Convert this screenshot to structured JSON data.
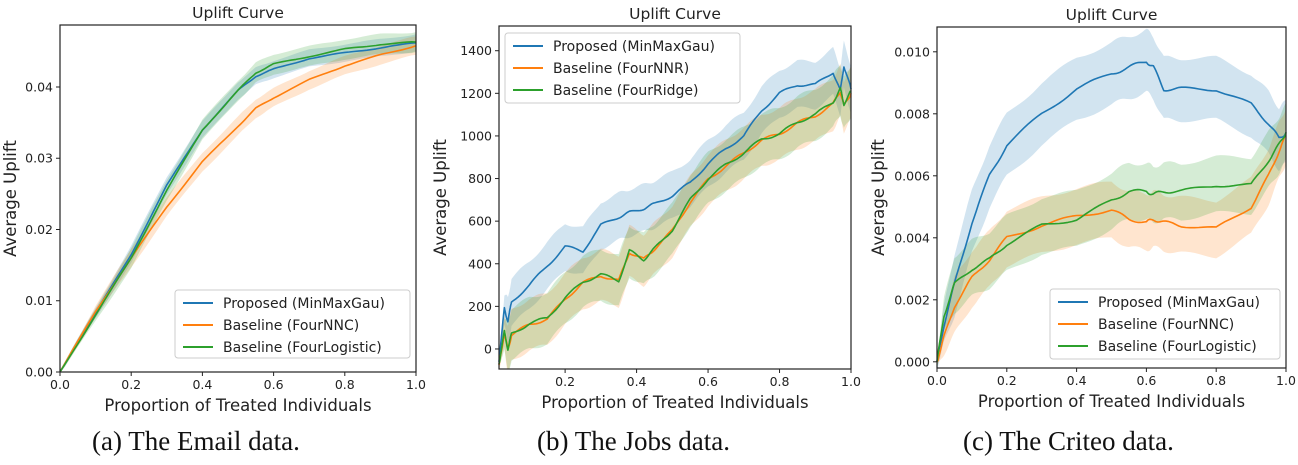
{
  "captions": {
    "a": "(a) The Email data.",
    "b": "(b) The Jobs data.",
    "c": "(c) The Criteo data."
  },
  "colors": {
    "proposed": "#1f77b4",
    "baseline1": "#ff7f0e",
    "baseline2": "#2ca02c"
  },
  "chart_data": [
    {
      "id": "email",
      "type": "line",
      "title": "Uplift Curve",
      "xlabel": "Proportion of Treated Individuals",
      "ylabel": "Average Uplift",
      "xlim": [
        0.0,
        1.0
      ],
      "ylim": [
        0.0,
        0.0487
      ],
      "xticks": [
        0.0,
        0.2,
        0.4,
        0.6,
        0.8,
        1.0
      ],
      "xtick_labels": [
        "0.0",
        "0.2",
        "0.4",
        "0.6",
        "0.8",
        "1.0"
      ],
      "yticks": [
        0.0,
        0.01,
        0.02,
        0.03,
        0.04
      ],
      "ytick_labels": [
        "0.00",
        "0.01",
        "0.02",
        "0.03",
        "0.04"
      ],
      "grid": false,
      "legend_position": "lower right",
      "legend": [
        "Proposed (MinMaxGau)",
        "Baseline (FourNNC)",
        "Baseline (FourLogistic)"
      ],
      "x": [
        0.0,
        0.1,
        0.2,
        0.3,
        0.4,
        0.5,
        0.55,
        0.6,
        0.7,
        0.8,
        0.9,
        1.0
      ],
      "series": [
        {
          "name": "Proposed (MinMaxGau)",
          "color": "#1f77b4",
          "band": 0.0012,
          "values": [
            0.0,
            0.0083,
            0.0165,
            0.0262,
            0.034,
            0.0395,
            0.0415,
            0.0425,
            0.044,
            0.0448,
            0.0455,
            0.0462
          ]
        },
        {
          "name": "Baseline (FourNNC)",
          "color": "#ff7f0e",
          "band": 0.0013,
          "values": [
            0.0,
            0.0085,
            0.016,
            0.0232,
            0.0295,
            0.0345,
            0.037,
            0.0385,
            0.041,
            0.043,
            0.0445,
            0.0458
          ]
        },
        {
          "name": "Baseline (FourLogistic)",
          "color": "#2ca02c",
          "band": 0.0014,
          "values": [
            0.0,
            0.008,
            0.016,
            0.0255,
            0.034,
            0.0395,
            0.042,
            0.0432,
            0.0443,
            0.0453,
            0.046,
            0.0463
          ]
        }
      ]
    },
    {
      "id": "jobs",
      "type": "line",
      "title": "Uplift Curve",
      "xlabel": "Proportion of Treated Individuals",
      "ylabel": "Average Uplift",
      "xlim": [
        0.015,
        1.0
      ],
      "ylim": [
        -94,
        1516
      ],
      "xticks": [
        0.2,
        0.4,
        0.6,
        0.8,
        1.0
      ],
      "xtick_labels": [
        "0.2",
        "0.4",
        "0.6",
        "0.8",
        "1.0"
      ],
      "yticks": [
        0,
        200,
        400,
        600,
        800,
        1000,
        1200,
        1400
      ],
      "ytick_labels": [
        "0",
        "200",
        "400",
        "600",
        "800",
        "1000",
        "1200",
        "1400"
      ],
      "grid": false,
      "legend_position": "upper left",
      "legend": [
        "Proposed (MinMaxGau)",
        "Baseline (FourNNR)",
        "Baseline (FourRidge)"
      ],
      "x": [
        0.015,
        0.03,
        0.04,
        0.05,
        0.1,
        0.15,
        0.2,
        0.25,
        0.3,
        0.35,
        0.38,
        0.42,
        0.45,
        0.5,
        0.55,
        0.6,
        0.65,
        0.7,
        0.75,
        0.8,
        0.85,
        0.9,
        0.95,
        0.97,
        0.98,
        1.0
      ],
      "series": [
        {
          "name": "Proposed (MinMaxGau)",
          "color": "#1f77b4",
          "band": 110,
          "values": [
            -60,
            190,
            130,
            220,
            300,
            390,
            480,
            460,
            580,
            620,
            640,
            660,
            680,
            720,
            780,
            870,
            940,
            1000,
            1120,
            1200,
            1240,
            1240,
            1300,
            1210,
            1330,
            1220
          ]
        },
        {
          "name": "Baseline (FourNNR)",
          "color": "#ff7f0e",
          "band": 120,
          "values": [
            -75,
            75,
            -5,
            65,
            115,
            140,
            235,
            310,
            345,
            320,
            455,
            420,
            470,
            555,
            690,
            795,
            860,
            920,
            980,
            1010,
            1060,
            1095,
            1150,
            1210,
            1140,
            1200
          ]
        },
        {
          "name": "Baseline (FourRidge)",
          "color": "#2ca02c",
          "band": 120,
          "values": [
            -70,
            80,
            0,
            70,
            120,
            145,
            240,
            315,
            350,
            320,
            460,
            420,
            470,
            560,
            700,
            800,
            865,
            920,
            985,
            1010,
            1065,
            1100,
            1160,
            1220,
            1150,
            1210
          ]
        }
      ]
    },
    {
      "id": "criteo",
      "type": "line",
      "title": "Uplift Curve",
      "xlabel": "Proportion of Treated Individuals",
      "ylabel": "Average Uplift",
      "xlim": [
        0.0,
        1.0
      ],
      "ylim": [
        -0.0002,
        0.0108
      ],
      "xticks": [
        0.0,
        0.2,
        0.4,
        0.6,
        0.8,
        1.0
      ],
      "xtick_labels": [
        "0.0",
        "0.2",
        "0.4",
        "0.6",
        "0.8",
        "1.0"
      ],
      "yticks": [
        0.0,
        0.002,
        0.004,
        0.006,
        0.008,
        0.01
      ],
      "ytick_labels": [
        "0.000",
        "0.002",
        "0.004",
        "0.006",
        "0.008",
        "0.010"
      ],
      "grid": false,
      "legend_position": "lower right",
      "legend": [
        "Proposed (MinMaxGau)",
        "Baseline (FourNNC)",
        "Baseline (FourLogistic)"
      ],
      "x": [
        0.0,
        0.02,
        0.05,
        0.1,
        0.15,
        0.2,
        0.3,
        0.4,
        0.5,
        0.55,
        0.6,
        0.62,
        0.65,
        0.7,
        0.8,
        0.9,
        0.95,
        0.98,
        1.0
      ],
      "series": [
        {
          "name": "Proposed (MinMaxGau)",
          "color": "#1f77b4",
          "band": 0.001,
          "values": [
            0.0,
            0.0012,
            0.0025,
            0.0045,
            0.006,
            0.007,
            0.008,
            0.0088,
            0.0093,
            0.0095,
            0.0097,
            0.0095,
            0.0088,
            0.0088,
            0.0088,
            0.0083,
            0.0077,
            0.0072,
            0.0074
          ]
        },
        {
          "name": "Baseline (FourNNC)",
          "color": "#ff7f0e",
          "band": 0.0009,
          "values": [
            0.0,
            0.0008,
            0.0018,
            0.0027,
            0.0033,
            0.004,
            0.0044,
            0.0047,
            0.0049,
            0.0046,
            0.0045,
            0.0046,
            0.0045,
            0.0044,
            0.0043,
            0.005,
            0.006,
            0.0068,
            0.0073
          ]
        },
        {
          "name": "Baseline (FourLogistic)",
          "color": "#2ca02c",
          "band": 0.0009,
          "values": [
            0.0,
            0.0015,
            0.0025,
            0.003,
            0.0033,
            0.0038,
            0.0044,
            0.0046,
            0.0052,
            0.0055,
            0.0055,
            0.0054,
            0.0055,
            0.0055,
            0.0057,
            0.0057,
            0.0065,
            0.007,
            0.0074
          ]
        }
      ]
    }
  ]
}
